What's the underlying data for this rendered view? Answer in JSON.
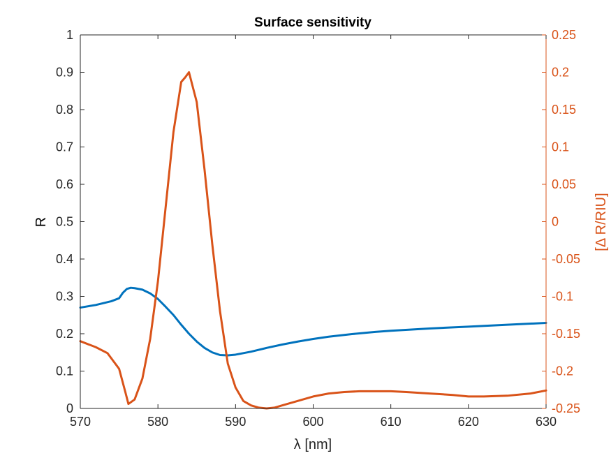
{
  "chart_data": {
    "type": "line",
    "title": "Surface sensitivity",
    "xlabel": "λ [nm]",
    "ylabel_left": "R",
    "ylabel_right": "[Δ R/RIU]",
    "xlim": [
      570,
      630
    ],
    "ylim_left": [
      0,
      1
    ],
    "ylim_right": [
      -0.25,
      0.25
    ],
    "grid": false,
    "x_ticks": [
      "570",
      "580",
      "590",
      "600",
      "610",
      "620",
      "630"
    ],
    "y_ticks_left": [
      "0",
      "0.1",
      "0.2",
      "0.3",
      "0.4",
      "0.5",
      "0.6",
      "0.7",
      "0.8",
      "0.9",
      "1"
    ],
    "y_ticks_right": [
      "-0.25",
      "-0.2",
      "-0.15",
      "-0.1",
      "-0.05",
      "0",
      "0.05",
      "0.1",
      "0.15",
      "0.2",
      "0.25"
    ],
    "colors": {
      "left": "#0072BD",
      "right": "#D95319",
      "axes": "#262626"
    },
    "series": [
      {
        "axis": "left",
        "color": "#0072BD",
        "x": [
          570,
          572,
          574,
          575,
          575.5,
          576,
          576.5,
          577,
          578,
          579,
          580,
          581,
          582,
          583,
          584,
          585,
          586,
          587,
          588,
          589,
          590,
          592,
          594,
          596,
          598,
          600,
          602,
          605,
          608,
          610,
          615,
          620,
          625,
          630
        ],
        "y": [
          0.27,
          0.277,
          0.287,
          0.295,
          0.31,
          0.32,
          0.323,
          0.322,
          0.318,
          0.308,
          0.293,
          0.272,
          0.25,
          0.224,
          0.2,
          0.179,
          0.162,
          0.15,
          0.143,
          0.142,
          0.144,
          0.152,
          0.162,
          0.171,
          0.179,
          0.186,
          0.192,
          0.199,
          0.205,
          0.208,
          0.214,
          0.219,
          0.224,
          0.229
        ]
      },
      {
        "axis": "right",
        "color": "#D95319",
        "x": [
          570,
          572,
          573.5,
          575,
          575.8,
          576.2,
          577,
          578,
          579,
          580,
          581,
          582,
          583,
          583.5,
          584,
          585,
          586,
          587,
          588,
          589,
          590,
          591,
          592,
          593,
          594,
          595,
          596,
          598,
          600,
          602,
          604,
          606,
          608,
          610,
          612,
          615,
          618,
          620,
          622,
          625,
          628,
          630
        ],
        "y": [
          -0.16,
          -0.168,
          -0.176,
          -0.197,
          -0.228,
          -0.244,
          -0.238,
          -0.21,
          -0.157,
          -0.08,
          0.02,
          0.12,
          0.187,
          0.193,
          0.2,
          0.16,
          0.07,
          -0.03,
          -0.12,
          -0.19,
          -0.222,
          -0.24,
          -0.246,
          -0.249,
          -0.25,
          -0.249,
          -0.246,
          -0.24,
          -0.234,
          -0.23,
          -0.228,
          -0.227,
          -0.227,
          -0.227,
          -0.228,
          -0.23,
          -0.232,
          -0.234,
          -0.234,
          -0.233,
          -0.23,
          -0.226
        ]
      }
    ]
  }
}
